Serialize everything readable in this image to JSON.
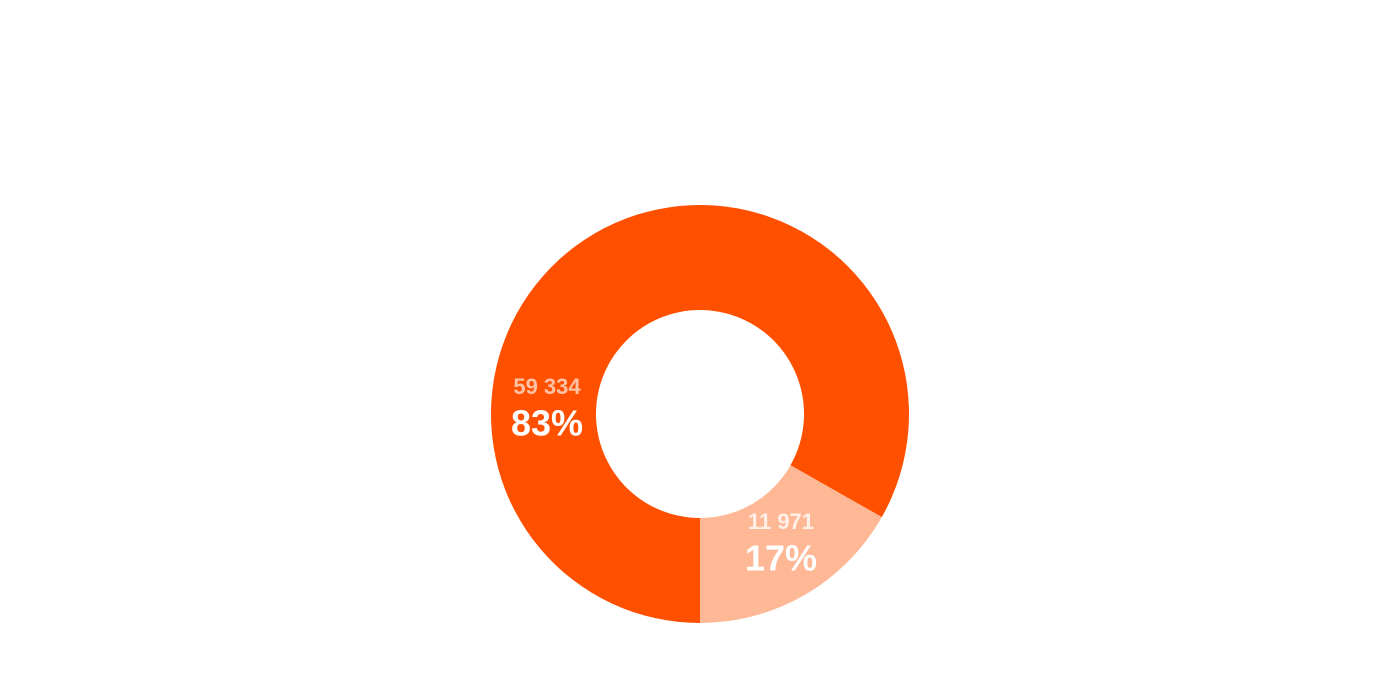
{
  "chart_data": {
    "type": "donut",
    "categories": [
      null,
      null
    ],
    "series": [
      {
        "values": [
          59334,
          11971
        ],
        "value_labels": [
          "59 334",
          "11 971"
        ],
        "percent_labels": [
          "83%",
          "17%"
        ]
      }
    ],
    "colors": [
      "#ff5000",
      "#ffb896"
    ]
  }
}
